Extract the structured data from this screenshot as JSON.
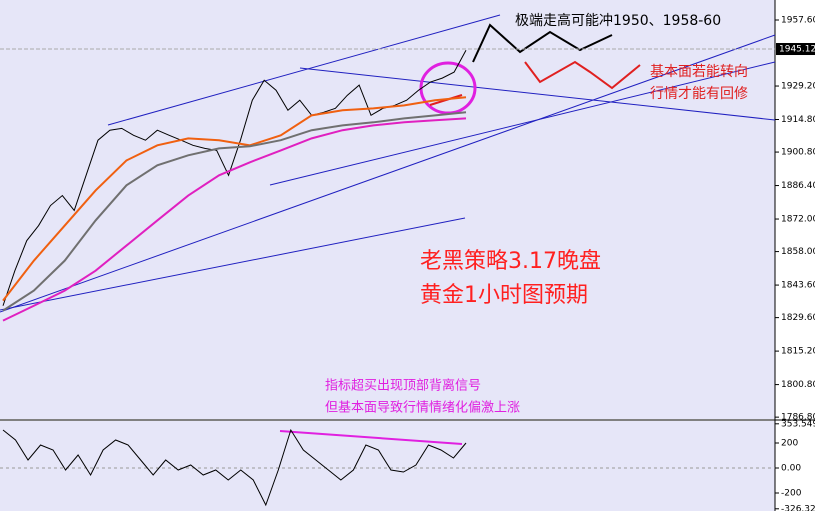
{
  "chart_data": [
    {
      "type": "line",
      "last_price": 1945.12,
      "ylim": [
        1786.0,
        1966.2
      ],
      "yticks": [
        {
          "value": 1957.6,
          "label": "1957.60"
        },
        {
          "value": 1929.2,
          "label": "1929.20"
        },
        {
          "value": 1914.8,
          "label": "1914.80"
        },
        {
          "value": 1900.8,
          "label": "1900.80"
        },
        {
          "value": 1886.4,
          "label": "1886.40"
        },
        {
          "value": 1872.0,
          "label": "1872.00"
        },
        {
          "value": 1858.0,
          "label": "1858.00"
        },
        {
          "value": 1843.6,
          "label": "1843.60"
        },
        {
          "value": 1829.6,
          "label": "1829.60"
        },
        {
          "value": 1815.2,
          "label": "1815.20"
        },
        {
          "value": 1800.8,
          "label": "1800.80"
        },
        {
          "value": 1786.8,
          "label": "1786.80"
        }
      ],
      "series": [
        {
          "color": "#000000",
          "values": [
            1834.7,
            1849.8,
            1862.7,
            1869.2,
            1877.8,
            1882.1,
            1875.7,
            1890.8,
            1905.9,
            1910.2,
            1911.0,
            1908.0,
            1905.9,
            1910.2,
            1908.0,
            1905.9,
            1903.7,
            1902.4,
            1901.5,
            1890.8,
            1905.9,
            1923.1,
            1931.7,
            1927.4,
            1918.8,
            1923.1,
            1916.6,
            1917.9,
            1919.6,
            1925.2,
            1929.6,
            1916.6,
            1919.6,
            1920.9,
            1923.1,
            1927.4,
            1930.9,
            1932.6,
            1935.2,
            1944.6
          ]
        },
        {
          "color": "#f06010",
          "values": [
            1836.9,
            1854.1,
            1869.2,
            1884.3,
            1897.2,
            1903.7,
            1906.7,
            1905.9,
            1903.7,
            1908.0,
            1916.6,
            1918.8,
            1919.6,
            1920.9,
            1923.1,
            1924.4
          ]
        },
        {
          "color": "#707070",
          "values": [
            1832.6,
            1841.2,
            1854.1,
            1871.4,
            1886.5,
            1895.1,
            1899.4,
            1902.4,
            1903.3,
            1905.9,
            1910.2,
            1912.3,
            1913.6,
            1915.3,
            1916.6,
            1917.9
          ]
        },
        {
          "color": "#e020c0",
          "values": [
            1828.3,
            1834.7,
            1841.2,
            1849.8,
            1860.6,
            1871.4,
            1882.1,
            1890.8,
            1896.4,
            1901.5,
            1906.7,
            1910.2,
            1912.3,
            1913.6,
            1914.5,
            1915.3
          ]
        }
      ]
    },
    {
      "type": "line",
      "ylim": [
        -344,
        376
      ],
      "yticks": [
        353.5496,
        200,
        {
          "value": 0,
          "label": "0.00"
        },
        -200,
        -326.323
      ],
      "series": [
        {
          "color": "#000000",
          "values": [
            304,
            224,
            64,
            184,
            144,
            -16,
            104,
            -56,
            144,
            224,
            184,
            64,
            -56,
            64,
            -16,
            24,
            -56,
            -16,
            -96,
            -16,
            -96,
            -296,
            -16,
            304,
            144,
            64,
            -16,
            -96,
            -16,
            184,
            144,
            -16,
            -32,
            24,
            184,
            144,
            80,
            200
          ]
        }
      ]
    }
  ],
  "annotations": {
    "top_note": "极端走高可能冲1950、1958-60",
    "right_note_1": "基本面若能转向",
    "right_note_2": "行情才能有回修",
    "headline_1": "老黑策略3.17晚盘",
    "headline_2": "黄金1小时图预期",
    "indicator_note_1": "指标超买出现顶部背离信号",
    "indicator_note_2": "但基本面导致行情情绪化偏激上涨"
  }
}
